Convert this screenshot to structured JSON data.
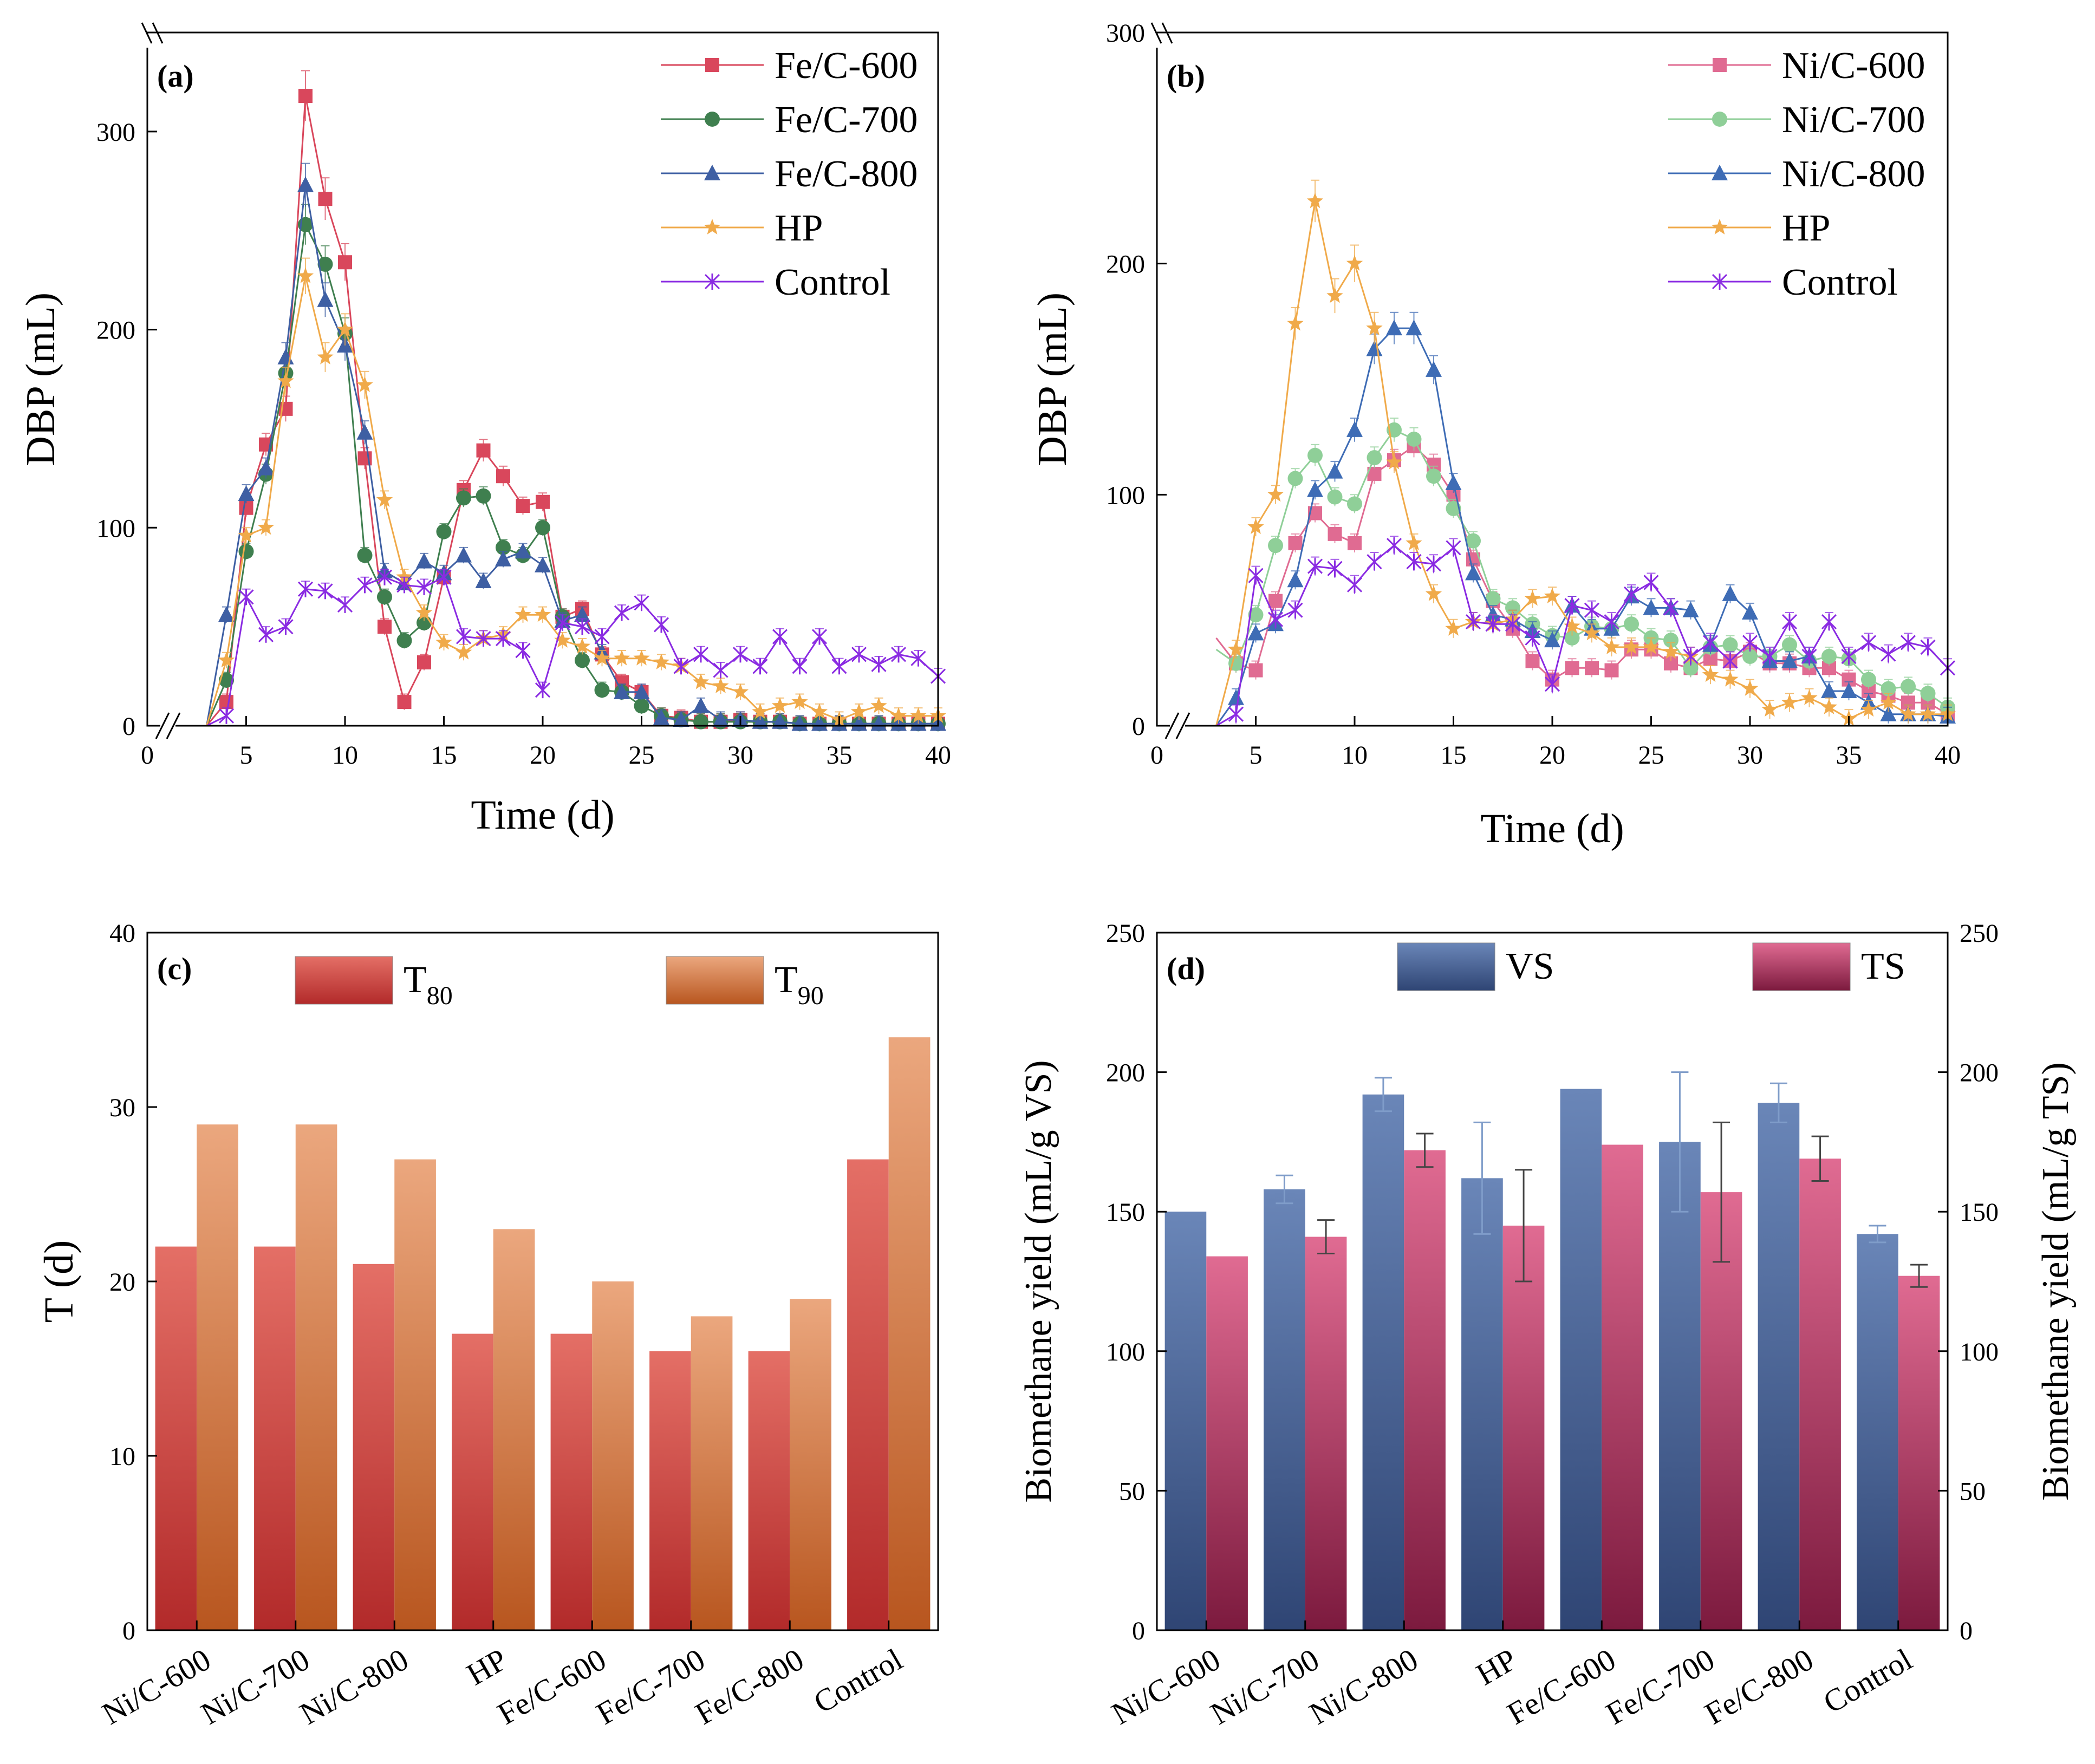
{
  "chart_data": [
    {
      "panel": "(a)",
      "type": "line",
      "xlabel": "Time (d)",
      "ylabel": "DBP (mL)",
      "xlim": [
        0,
        40
      ],
      "ylim": [
        0,
        350
      ],
      "xticks": [
        0,
        5,
        10,
        15,
        20,
        25,
        30,
        35,
        40
      ],
      "yticks": [
        0,
        100,
        200,
        300
      ],
      "x": [
        3,
        4,
        5,
        6,
        7,
        8,
        9,
        10,
        11,
        12,
        13,
        14,
        15,
        16,
        17,
        18,
        19,
        20,
        21,
        22,
        23,
        24,
        25,
        26,
        27,
        28,
        29,
        30,
        31,
        32,
        33,
        34,
        35,
        36,
        37,
        38,
        39,
        40
      ],
      "series": [
        {
          "name": "Fe/C-600",
          "color": "#d9475c",
          "marker": "square",
          "values": [
            0,
            12,
            110,
            142,
            160,
            318,
            266,
            234,
            135,
            50,
            12,
            32,
            75,
            119,
            139,
            126,
            111,
            113,
            55,
            59,
            36,
            22,
            17,
            5,
            4,
            2,
            2,
            3,
            2,
            2,
            1,
            1,
            1,
            1,
            1,
            1,
            1,
            1
          ]
        },
        {
          "name": "Fe/C-700",
          "color": "#3f7f4f",
          "marker": "circle",
          "values": [
            0,
            23,
            88,
            127,
            178,
            253,
            233,
            198,
            86,
            65,
            43,
            52,
            98,
            115,
            116,
            90,
            86,
            100,
            55,
            33,
            18,
            17,
            10,
            5,
            3,
            2,
            2,
            2,
            2,
            2,
            1,
            1,
            1,
            1,
            1,
            1,
            1,
            1
          ]
        },
        {
          "name": "Fe/C-800",
          "color": "#3e5fa3",
          "marker": "triangle",
          "values": [
            0,
            56,
            117,
            130,
            186,
            273,
            215,
            192,
            148,
            78,
            72,
            83,
            77,
            86,
            73,
            84,
            88,
            81,
            53,
            56,
            37,
            17,
            17,
            4,
            3,
            10,
            3,
            3,
            2,
            2,
            1,
            1,
            1,
            1,
            1,
            1,
            1,
            1
          ]
        },
        {
          "name": "HP",
          "color": "#f0aa4a",
          "marker": "star",
          "values": [
            0,
            33,
            96,
            100,
            174,
            227,
            186,
            200,
            172,
            114,
            75,
            57,
            42,
            37,
            44,
            46,
            56,
            56,
            43,
            40,
            34,
            34,
            34,
            32,
            30,
            22,
            20,
            17,
            7,
            10,
            12,
            7,
            3,
            7,
            10,
            5,
            5,
            5
          ]
        },
        {
          "name": "Control",
          "color": "#8a2be2",
          "marker": "x",
          "values": [
            0,
            5,
            65,
            46,
            50,
            69,
            68,
            61,
            71,
            75,
            71,
            70,
            75,
            45,
            44,
            44,
            38,
            18,
            52,
            50,
            45,
            57,
            62,
            51,
            30,
            36,
            28,
            36,
            30,
            45,
            30,
            45,
            30,
            36,
            31,
            36,
            34,
            25
          ]
        }
      ]
    },
    {
      "panel": "(b)",
      "type": "line",
      "xlabel": "Time (d)",
      "ylabel": "DBP (mL)",
      "xlim": [
        0,
        40
      ],
      "ylim": [
        0,
        300
      ],
      "xticks": [
        0,
        5,
        10,
        15,
        20,
        25,
        30,
        35,
        40
      ],
      "yticks": [
        0,
        100,
        200,
        300
      ],
      "x": [
        3,
        4,
        5,
        6,
        7,
        8,
        9,
        10,
        11,
        12,
        13,
        14,
        15,
        16,
        17,
        18,
        19,
        20,
        21,
        22,
        23,
        24,
        25,
        26,
        27,
        28,
        29,
        30,
        31,
        32,
        33,
        34,
        35,
        36,
        37,
        38,
        39,
        40
      ],
      "series": [
        {
          "name": "Ni/C-600",
          "color": "#e06b92",
          "marker": "square",
          "values": [
            38,
            27,
            24,
            54,
            79,
            92,
            83,
            79,
            109,
            115,
            121,
            113,
            100,
            72,
            54,
            42,
            28,
            20,
            25,
            25,
            24,
            33,
            33,
            27,
            25,
            29,
            28,
            32,
            27,
            27,
            25,
            25,
            20,
            15,
            13,
            10,
            10,
            5
          ]
        },
        {
          "name": "Ni/C-700",
          "color": "#8fcf98",
          "marker": "circle",
          "values": [
            33,
            27,
            48,
            78,
            107,
            117,
            99,
            96,
            116,
            128,
            124,
            108,
            94,
            80,
            55,
            51,
            44,
            39,
            38,
            43,
            42,
            44,
            38,
            37,
            25,
            34,
            35,
            30,
            30,
            35,
            28,
            30,
            29,
            20,
            16,
            17,
            14,
            8
          ]
        },
        {
          "name": "Ni/C-800",
          "color": "#3e6cb5",
          "marker": "triangle",
          "values": [
            0,
            12,
            40,
            44,
            63,
            102,
            110,
            128,
            163,
            172,
            172,
            154,
            105,
            66,
            48,
            46,
            41,
            37,
            52,
            42,
            42,
            56,
            51,
            51,
            50,
            35,
            57,
            49,
            28,
            28,
            30,
            15,
            15,
            10,
            5,
            5,
            5,
            4
          ]
        },
        {
          "name": "HP",
          "color": "#f0aa4a",
          "marker": "star",
          "values": [
            0,
            33,
            86,
            100,
            174,
            227,
            186,
            200,
            172,
            114,
            79,
            57,
            42,
            45,
            44,
            46,
            55,
            56,
            43,
            40,
            34,
            34,
            34,
            32,
            30,
            22,
            20,
            16,
            7,
            10,
            12,
            8,
            3,
            7,
            10,
            5,
            5,
            5
          ]
        },
        {
          "name": "Control",
          "color": "#8a2be2",
          "marker": "x",
          "values": [
            0,
            5,
            65,
            46,
            50,
            69,
            68,
            61,
            71,
            78,
            71,
            70,
            77,
            45,
            44,
            44,
            38,
            18,
            52,
            50,
            45,
            57,
            62,
            51,
            30,
            36,
            28,
            36,
            30,
            45,
            30,
            45,
            30,
            36,
            31,
            36,
            34,
            25
          ]
        }
      ]
    },
    {
      "panel": "(c)",
      "type": "bar",
      "ylabel": "T (d)",
      "ylim": [
        0,
        40
      ],
      "yticks": [
        0,
        10,
        20,
        30,
        40
      ],
      "categories": [
        "Ni/C-600",
        "Ni/C-700",
        "Ni/C-800",
        "HP",
        "Fe/C-600",
        "Fe/C-700",
        "Fe/C-800",
        "Control"
      ],
      "series": [
        {
          "name": "T",
          "sub": "80",
          "values": [
            22,
            22,
            21,
            17,
            17,
            16,
            16,
            27
          ]
        },
        {
          "name": "T",
          "sub": "90",
          "values": [
            29,
            29,
            27,
            23,
            20,
            18,
            19,
            34
          ]
        }
      ]
    },
    {
      "panel": "(d)",
      "type": "bar",
      "ylabel": "Biomethane yield (mL/g VS)",
      "ylabel_right": "Biomethane yield (mL/g TS)",
      "ylim": [
        0,
        250
      ],
      "yticks": [
        0,
        50,
        100,
        150,
        200,
        250
      ],
      "categories": [
        "Ni/C-600",
        "Ni/C-700",
        "Ni/C-800",
        "HP",
        "Fe/C-600",
        "Fe/C-700",
        "Fe/C-800",
        "Control"
      ],
      "series": [
        {
          "name": "VS",
          "values": [
            150,
            158,
            192,
            162,
            194,
            175,
            189,
            142
          ],
          "errors": [
            0,
            5,
            6,
            20,
            0,
            25,
            7,
            3
          ]
        },
        {
          "name": "TS",
          "values": [
            134,
            141,
            172,
            145,
            174,
            157,
            169,
            127
          ],
          "errors": [
            0,
            6,
            6,
            20,
            0,
            25,
            8,
            4
          ]
        }
      ]
    }
  ]
}
